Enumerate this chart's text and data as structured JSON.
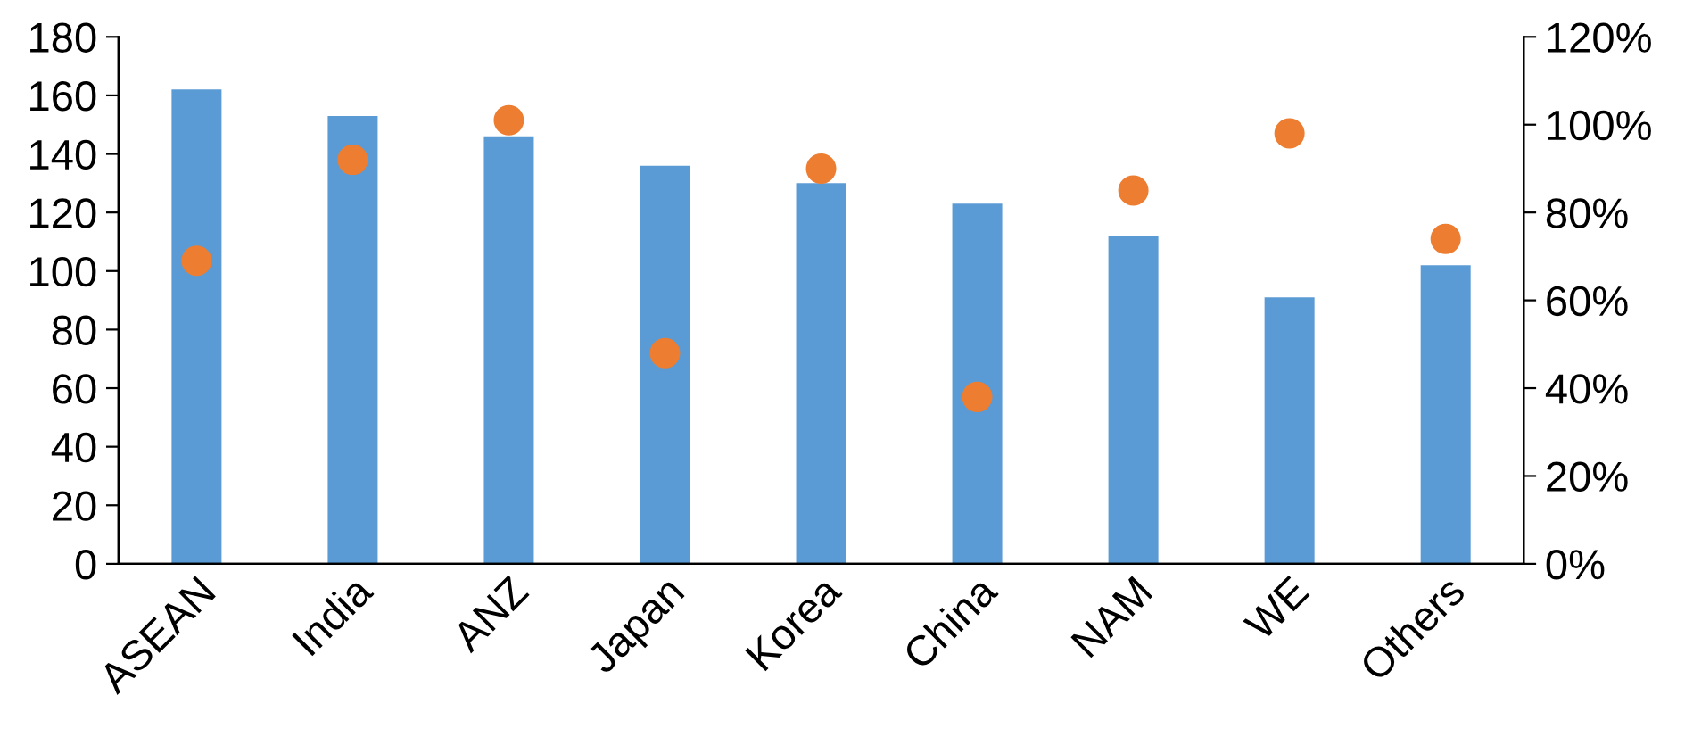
{
  "chart_data": {
    "type": "bar",
    "categories": [
      "ASEAN",
      "India",
      "ANZ",
      "Japan",
      "Korea",
      "China",
      "NAM",
      "WE",
      "Others"
    ],
    "series": [
      {
        "color": "#5b9bd5",
        "values": [
          162,
          153,
          146,
          136,
          130,
          123,
          112,
          91,
          102
        ]
      },
      {
        "type": "scatter",
        "axis": "y2",
        "color": "#ed7d31",
        "marker": "circle",
        "values": [
          69,
          92,
          101,
          48,
          90,
          38,
          85,
          98,
          74
        ]
      }
    ],
    "ylim": [
      0,
      180
    ],
    "yticks": [
      0,
      20,
      40,
      60,
      80,
      100,
      120,
      140,
      160,
      180
    ],
    "y2lim": [
      0,
      120
    ],
    "y2ticks": [
      {
        "value": 0,
        "label": "0%"
      },
      {
        "value": 20,
        "label": "20%"
      },
      {
        "value": 40,
        "label": "40%"
      },
      {
        "value": 60,
        "label": "60%"
      },
      {
        "value": 80,
        "label": "80%"
      },
      {
        "value": 100,
        "label": "100%"
      },
      {
        "value": 120,
        "label": "120%"
      }
    ],
    "grid": false,
    "legend": false
  }
}
